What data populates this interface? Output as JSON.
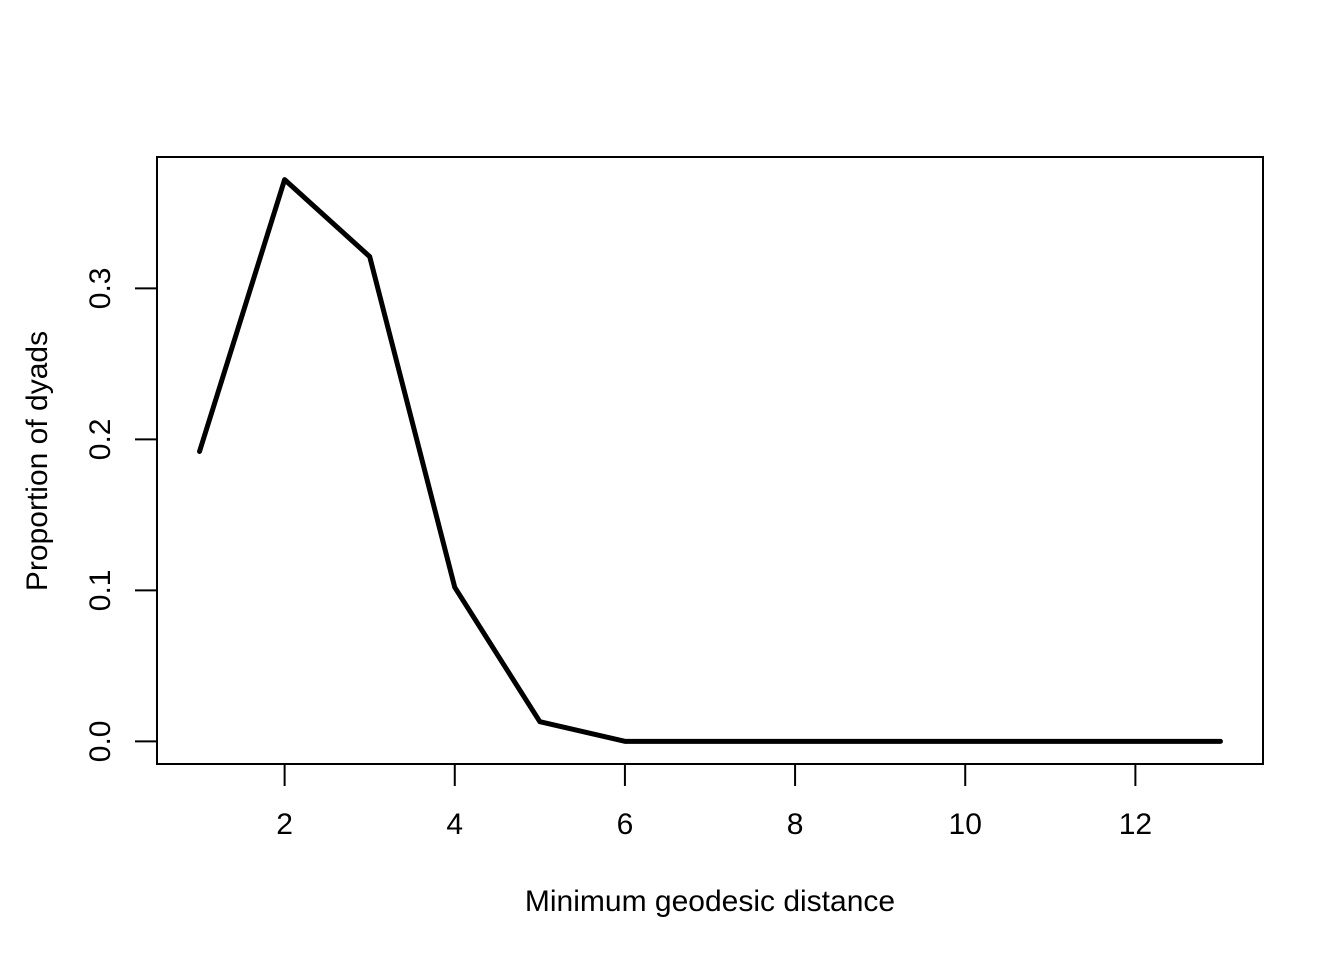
{
  "chart_data": {
    "type": "line",
    "title": "",
    "xlabel": "Minimum geodesic distance",
    "ylabel": "Proportion of dyads",
    "xlim": [
      0.5,
      13.5
    ],
    "ylim": [
      -0.015,
      0.387
    ],
    "x_ticks": [
      2,
      4,
      6,
      8,
      10,
      12
    ],
    "y_ticks": [
      0.0,
      0.1,
      0.2,
      0.3
    ],
    "x_tick_labels": [
      "2",
      "4",
      "6",
      "8",
      "10",
      "12"
    ],
    "y_tick_labels": [
      "0.0",
      "0.1",
      "0.2",
      "0.3"
    ],
    "grid": false,
    "series": [
      {
        "x": [
          1,
          2,
          3,
          4,
          5,
          6,
          7,
          8,
          9,
          10,
          11,
          12,
          13
        ],
        "y": [
          0.192,
          0.372,
          0.321,
          0.102,
          0.013,
          0.0,
          0.0,
          0.0,
          0.0,
          0.0,
          0.0,
          0.0,
          0.0
        ],
        "color": "#000000"
      }
    ]
  }
}
